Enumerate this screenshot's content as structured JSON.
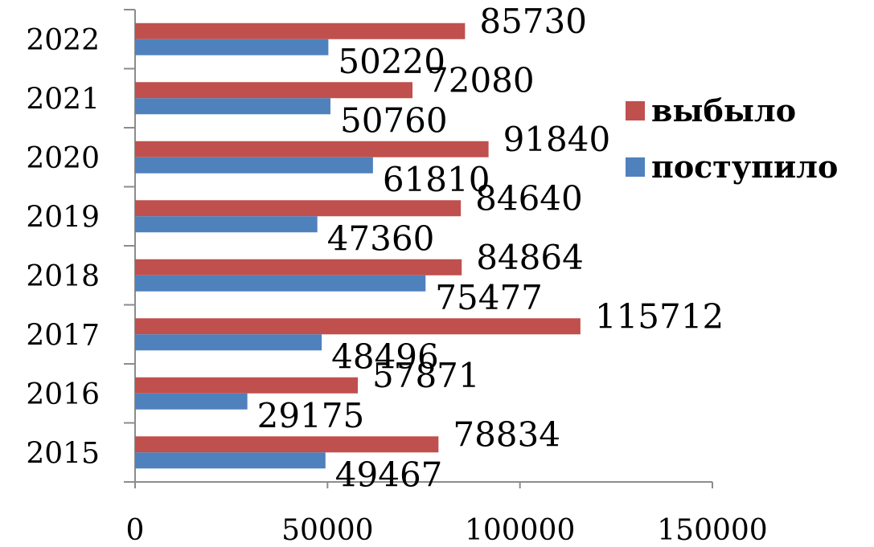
{
  "chart_data": {
    "type": "bar",
    "orientation": "horizontal",
    "categories": [
      "2015",
      "2016",
      "2017",
      "2018",
      "2019",
      "2020",
      "2021",
      "2022"
    ],
    "series": [
      {
        "name": "поступило",
        "color": "#4f81bd",
        "values": [
          49467,
          29175,
          48496,
          75477,
          47360,
          61810,
          50760,
          50220
        ],
        "labels": [
          "49467",
          "29175",
          "48496",
          "75477",
          "47360",
          "61810",
          "50760",
          "50220"
        ]
      },
      {
        "name": "выбыло",
        "color": "#c0504d",
        "values": [
          78834,
          57871,
          115712,
          84864,
          84640,
          91840,
          72080,
          85730
        ],
        "labels": [
          "78834",
          "57871",
          "115712",
          "84864",
          "84640",
          "91840",
          "72080",
          "85730"
        ]
      }
    ],
    "x_axis": {
      "range": [
        0,
        150000
      ],
      "ticks": [
        0,
        50000,
        100000,
        150000
      ],
      "tick_labels": [
        "0",
        "50000",
        "100000",
        "150000"
      ]
    },
    "grid": false,
    "legend": {
      "position": "right",
      "entries": [
        {
          "label": "выбыло",
          "color": "#c0504d"
        },
        {
          "label": "поступило",
          "color": "#4f81bd"
        }
      ]
    },
    "title": "",
    "xlabel": "",
    "ylabel": ""
  }
}
